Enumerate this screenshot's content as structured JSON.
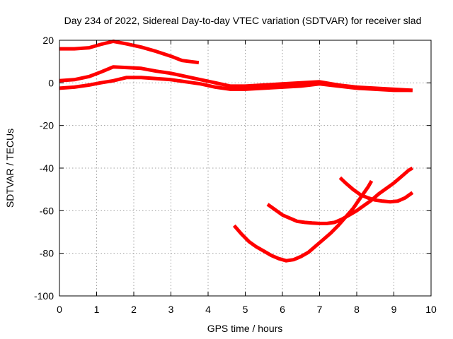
{
  "chart_data": {
    "type": "line",
    "title": "Day 234 of 2022, Sidereal Day-to-day VTEC variation (SDTVAR) for receiver slad",
    "xlabel": "GPS time / hours",
    "ylabel": "SDTVAR / TECUs",
    "xlim": [
      0,
      10
    ],
    "ylim": [
      -100,
      20
    ],
    "xticks": [
      0,
      1,
      2,
      3,
      4,
      5,
      6,
      7,
      8,
      9,
      10
    ],
    "yticks": [
      -100,
      -80,
      -60,
      -40,
      -20,
      0,
      20
    ],
    "grid": true,
    "legend": "none",
    "color": "#ff0000",
    "series": [
      {
        "points": [
          [
            0,
            16
          ],
          [
            0.4,
            16
          ],
          [
            0.8,
            16.5
          ],
          [
            1.1,
            18
          ],
          [
            1.45,
            19.5
          ],
          [
            1.8,
            18.3
          ],
          [
            2.2,
            16.8
          ],
          [
            2.6,
            14.8
          ],
          [
            3.0,
            12.5
          ],
          [
            3.3,
            10.5
          ],
          [
            3.75,
            9.5
          ]
        ]
      },
      {
        "points": [
          [
            0,
            1
          ],
          [
            0.4,
            1.5
          ],
          [
            0.8,
            3
          ],
          [
            1.1,
            5
          ],
          [
            1.45,
            7.5
          ],
          [
            1.8,
            7.2
          ],
          [
            2.2,
            6.8
          ],
          [
            2.6,
            5.5
          ],
          [
            3.0,
            4.5
          ],
          [
            3.4,
            3
          ],
          [
            3.8,
            1.5
          ],
          [
            4.2,
            0
          ],
          [
            4.6,
            -1.5
          ],
          [
            5.0,
            -1.5
          ],
          [
            5.5,
            -1
          ],
          [
            6.0,
            -0.5
          ],
          [
            6.5,
            0
          ],
          [
            7.0,
            0.5
          ],
          [
            7.5,
            -1
          ],
          [
            8.0,
            -2
          ],
          [
            8.5,
            -2.5
          ],
          [
            9.0,
            -3
          ],
          [
            9.5,
            -3.5
          ]
        ]
      },
      {
        "points": [
          [
            0,
            -2.5
          ],
          [
            0.4,
            -2
          ],
          [
            0.8,
            -1
          ],
          [
            1.1,
            0
          ],
          [
            1.45,
            1
          ],
          [
            1.8,
            2.5
          ],
          [
            2.2,
            2.5
          ],
          [
            2.6,
            2
          ],
          [
            3.0,
            1.5
          ],
          [
            3.4,
            0.5
          ],
          [
            3.8,
            -0.5
          ],
          [
            4.2,
            -2
          ],
          [
            4.6,
            -3
          ],
          [
            5.0,
            -3
          ],
          [
            5.5,
            -2.5
          ],
          [
            6.0,
            -2
          ],
          [
            6.5,
            -1.5
          ],
          [
            7.0,
            -0.5
          ],
          [
            7.5,
            -1.5
          ],
          [
            8.0,
            -2.5
          ],
          [
            8.5,
            -3
          ],
          [
            9.0,
            -3.5
          ],
          [
            9.5,
            -3.5
          ]
        ]
      },
      {
        "points": [
          [
            4.7,
            -67
          ],
          [
            4.9,
            -71
          ],
          [
            5.1,
            -74.5
          ],
          [
            5.3,
            -77
          ],
          [
            5.5,
            -79
          ],
          [
            5.7,
            -81
          ],
          [
            5.9,
            -82.5
          ],
          [
            6.1,
            -83.5
          ],
          [
            6.3,
            -83
          ],
          [
            6.5,
            -81.5
          ],
          [
            6.7,
            -79.5
          ],
          [
            6.9,
            -76.5
          ],
          [
            7.1,
            -73.5
          ],
          [
            7.3,
            -70.5
          ],
          [
            7.5,
            -67
          ],
          [
            7.7,
            -63
          ],
          [
            7.9,
            -59
          ],
          [
            8.1,
            -54
          ],
          [
            8.3,
            -49
          ],
          [
            8.4,
            -46
          ]
        ]
      },
      {
        "points": [
          [
            5.6,
            -57
          ],
          [
            5.8,
            -59.5
          ],
          [
            6.0,
            -62
          ],
          [
            6.2,
            -63.5
          ],
          [
            6.4,
            -65
          ],
          [
            6.6,
            -65.5
          ],
          [
            6.8,
            -65.8
          ],
          [
            7.0,
            -66
          ],
          [
            7.2,
            -66
          ],
          [
            7.4,
            -65.5
          ],
          [
            7.6,
            -64
          ],
          [
            7.8,
            -62
          ],
          [
            8.0,
            -60
          ],
          [
            8.2,
            -57.5
          ],
          [
            8.4,
            -55
          ],
          [
            8.6,
            -52
          ],
          [
            8.8,
            -49.5
          ],
          [
            9.0,
            -47
          ],
          [
            9.2,
            -44
          ],
          [
            9.4,
            -41
          ],
          [
            9.5,
            -40
          ]
        ]
      },
      {
        "points": [
          [
            7.55,
            -44.5
          ],
          [
            7.7,
            -47
          ],
          [
            7.9,
            -50
          ],
          [
            8.1,
            -52.5
          ],
          [
            8.3,
            -54
          ],
          [
            8.5,
            -55
          ],
          [
            8.7,
            -55.5
          ],
          [
            8.9,
            -55.8
          ],
          [
            9.1,
            -55.5
          ],
          [
            9.3,
            -54
          ],
          [
            9.5,
            -51.5
          ]
        ]
      }
    ]
  }
}
